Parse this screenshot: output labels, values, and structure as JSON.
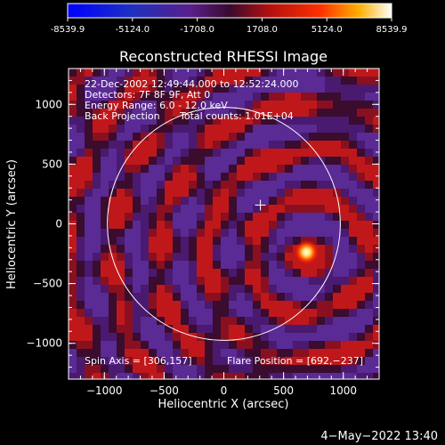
{
  "colorbar": {
    "ticks": [
      "-8539.9",
      "-5124.0",
      "-1708.0",
      "1708.0",
      "5124.0",
      "8539.9"
    ],
    "range": [
      -8539.9,
      8539.9
    ]
  },
  "chart_data": {
    "type": "heatmap",
    "title": "Reconstructed RHESSI Image",
    "xlabel": "Heliocentric X (arcsec)",
    "ylabel": "Heliocentric Y (arcsec)",
    "xlim": [
      -1300,
      1300
    ],
    "ylim": [
      -1300,
      1300
    ],
    "xticks": [
      -1000,
      -500,
      0,
      500,
      1000
    ],
    "yticks": [
      -1000,
      -500,
      0,
      500,
      1000
    ],
    "xtick_labels": [
      "−1000",
      "−500",
      "0",
      "500",
      "1000"
    ],
    "ytick_labels": [
      "−1000",
      "−500",
      "0",
      "500",
      "1000"
    ],
    "solar_limb_radius": 975,
    "spin_axis": [
      306,
      157
    ],
    "flare_position": [
      692,
      -237
    ],
    "annotations": [
      "22-Dec-2002 12:49:44.000 to 12:52:24.000",
      "Detectors: 7F 8F 9F, Att 0",
      "Energy Range: 6.0 - 12.0 keV",
      "Back Projection",
      "Total counts: 1.01E+04"
    ],
    "spin_axis_label": "Spin Axis = [306,157]",
    "flare_position_label": "Flare Position = [692,−237]"
  },
  "footer": {
    "timestamp": "4−May−2022 13:40"
  }
}
